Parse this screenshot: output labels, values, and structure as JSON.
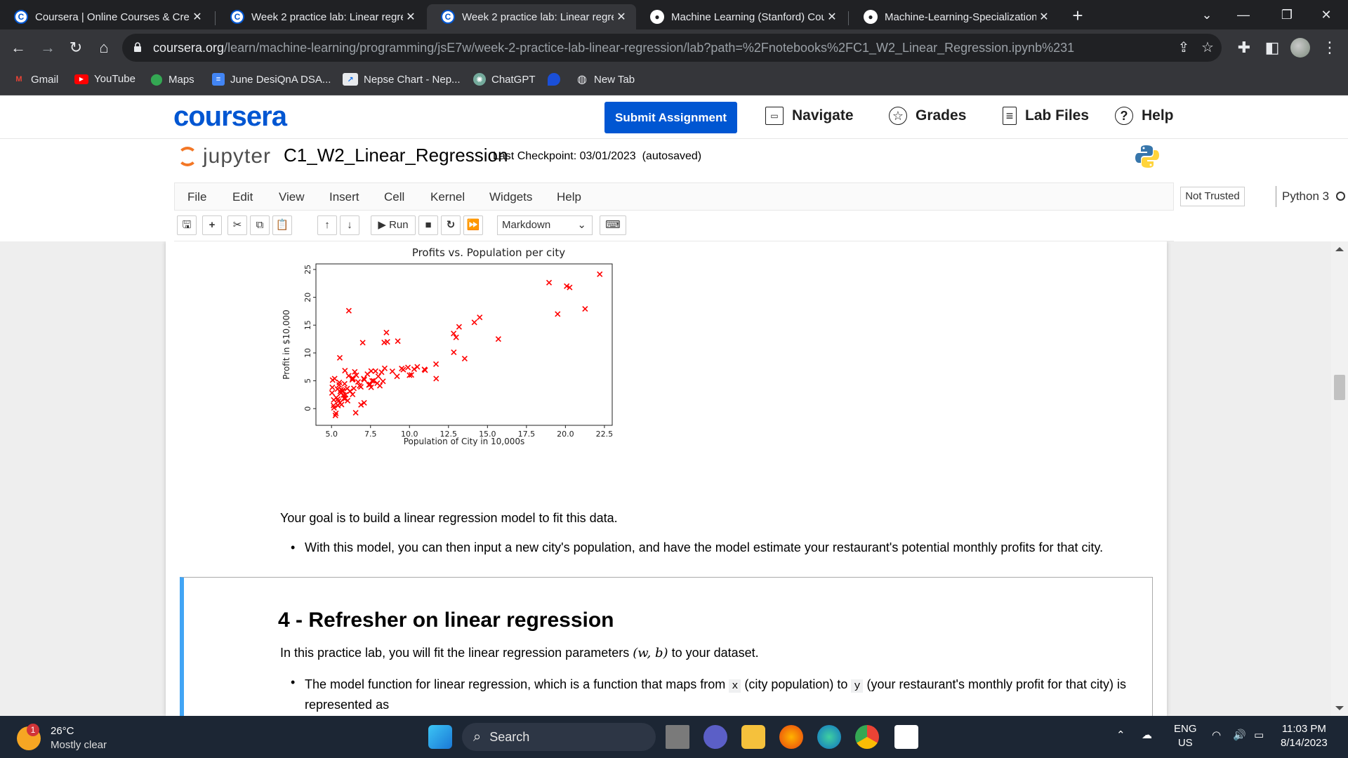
{
  "browser": {
    "tabs": [
      {
        "title": "Coursera | Online Courses & Cred",
        "icon": "coursera-icon",
        "active": false
      },
      {
        "title": "Week 2 practice lab: Linear regre",
        "icon": "coursera-icon",
        "active": false
      },
      {
        "title": "Week 2 practice lab: Linear regre",
        "icon": "coursera-icon",
        "active": true
      },
      {
        "title": "Machine Learning (Stanford) Cou",
        "icon": "github-icon",
        "active": false
      },
      {
        "title": "Machine-Learning-Specialization",
        "icon": "github-icon",
        "active": false
      }
    ],
    "url_domain": "coursera.org",
    "url_path": "/learn/machine-learning/programming/jsE7w/week-2-practice-lab-linear-regression/lab?path=%2Fnotebooks%2FC1_W2_Linear_Regression.ipynb%231",
    "bookmarks": [
      {
        "label": "Gmail",
        "icon": "gmail-icon"
      },
      {
        "label": "YouTube",
        "icon": "youtube-icon"
      },
      {
        "label": "Maps",
        "icon": "maps-icon"
      },
      {
        "label": "June DesiQnA DSA...",
        "icon": "docs-icon"
      },
      {
        "label": "Nepse Chart - Nep...",
        "icon": "chart-icon"
      },
      {
        "label": "ChatGPT",
        "icon": "chatgpt-icon"
      },
      {
        "label": "",
        "icon": "drop-icon"
      },
      {
        "label": "New Tab",
        "icon": "globe-icon"
      }
    ]
  },
  "coursera": {
    "logo": "coursera",
    "submit": "Submit Assignment",
    "nav": [
      {
        "label": "Navigate",
        "icon": "window-icon"
      },
      {
        "label": "Grades",
        "icon": "star-icon"
      },
      {
        "label": "Lab Files",
        "icon": "file-icon"
      },
      {
        "label": "Help",
        "icon": "help-icon"
      }
    ]
  },
  "jupyter": {
    "logo": "jupyter",
    "notebook": "C1_W2_Linear_Regression",
    "checkpoint": "Last Checkpoint: 03/01/2023",
    "autosaved": "(autosaved)",
    "menus": [
      "File",
      "Edit",
      "View",
      "Insert",
      "Cell",
      "Kernel",
      "Widgets",
      "Help"
    ],
    "trusted": "Not Trusted",
    "kernel": "Python 3",
    "run_label": "Run",
    "cell_type": "Markdown"
  },
  "chart_data": {
    "type": "scatter",
    "title": "Profits vs. Population per city",
    "xlabel": "Population of City in 10,000s",
    "ylabel": "Profit in $10,000",
    "xlim": [
      4.0,
      23.0
    ],
    "ylim": [
      -3.0,
      26.0
    ],
    "xticks": [
      "5.0",
      "7.5",
      "10.0",
      "12.5",
      "15.0",
      "17.5",
      "20.0",
      "22.5"
    ],
    "yticks": [
      "0",
      "5",
      "10",
      "15",
      "20",
      "25"
    ],
    "marker": "x",
    "color": "#ff0000",
    "points": [
      [
        6.11,
        17.59
      ],
      [
        5.53,
        9.13
      ],
      [
        8.52,
        13.66
      ],
      [
        7.0,
        11.85
      ],
      [
        5.86,
        6.82
      ],
      [
        8.38,
        11.89
      ],
      [
        7.48,
        4.35
      ],
      [
        8.58,
        12.0
      ],
      [
        6.49,
        6.6
      ],
      [
        5.05,
        3.82
      ],
      [
        5.71,
        3.25
      ],
      [
        14.16,
        15.5
      ],
      [
        5.73,
        3.16
      ],
      [
        8.41,
        7.23
      ],
      [
        5.64,
        0.72
      ],
      [
        5.38,
        3.51
      ],
      [
        6.37,
        5.3
      ],
      [
        5.13,
        0.56
      ],
      [
        6.43,
        3.65
      ],
      [
        7.07,
        5.39
      ],
      [
        6.19,
        3.14
      ],
      [
        20.27,
        21.77
      ],
      [
        5.49,
        4.26
      ],
      [
        6.33,
        5.19
      ],
      [
        5.56,
        3.08
      ],
      [
        18.95,
        22.64
      ],
      [
        12.83,
        13.5
      ],
      [
        10.96,
        7.05
      ],
      [
        13.18,
        14.69
      ],
      [
        22.2,
        24.15
      ],
      [
        5.25,
        -1.22
      ],
      [
        6.59,
        5.99
      ],
      [
        9.25,
        12.13
      ],
      [
        5.89,
        1.85
      ],
      [
        8.21,
        6.54
      ],
      [
        7.93,
        4.56
      ],
      [
        8.1,
        4.12
      ],
      [
        5.61,
        3.39
      ],
      [
        12.84,
        10.12
      ],
      [
        6.35,
        5.5
      ],
      [
        5.41,
        0.56
      ],
      [
        6.88,
        3.91
      ],
      [
        11.71,
        5.39
      ],
      [
        5.77,
        2.44
      ],
      [
        7.82,
        6.73
      ],
      [
        7.09,
        1.05
      ],
      [
        5.07,
        5.13
      ],
      [
        5.8,
        1.84
      ],
      [
        11.7,
        8.0
      ],
      [
        5.54,
        1.02
      ],
      [
        7.54,
        6.75
      ],
      [
        5.3,
        1.98
      ],
      [
        7.42,
        4.29
      ],
      [
        7.6,
        4.99
      ],
      [
        6.03,
        1.42
      ],
      [
        6.55,
        -0.74
      ],
      [
        7.54,
        3.83
      ],
      [
        5.03,
        2.82
      ],
      [
        5.14,
        1.56
      ],
      [
        7.4,
        4.26
      ],
      [
        6.35,
        2.55
      ],
      [
        5.84,
        4.47
      ],
      [
        5.16,
        0.15
      ],
      [
        5.28,
        -0.85
      ],
      [
        10.12,
        6.06
      ],
      [
        5.45,
        1.36
      ],
      [
        6.89,
        0.68
      ],
      [
        12.99,
        12.8
      ],
      [
        13.54,
        8.99
      ],
      [
        20.08,
        22.0
      ],
      [
        15.7,
        12.5
      ],
      [
        19.5,
        17.0
      ],
      [
        21.26,
        17.93
      ],
      [
        9.5,
        7.2
      ],
      [
        10.0,
        6.0
      ],
      [
        9.2,
        5.8
      ],
      [
        8.9,
        6.7
      ],
      [
        9.6,
        7.0
      ],
      [
        10.5,
        7.5
      ],
      [
        8.3,
        4.9
      ],
      [
        7.1,
        5.2
      ],
      [
        6.7,
        4.8
      ],
      [
        5.9,
        2.5
      ],
      [
        6.0,
        3.6
      ],
      [
        5.5,
        4.7
      ],
      [
        8.0,
        5.8
      ],
      [
        7.3,
        6.2
      ],
      [
        6.8,
        4.1
      ],
      [
        5.2,
        5.4
      ],
      [
        5.6,
        2.8
      ],
      [
        9.9,
        7.4
      ],
      [
        10.3,
        7.1
      ],
      [
        11.0,
        6.9
      ],
      [
        14.5,
        16.4
      ],
      [
        5.4,
        1.7
      ],
      [
        6.1,
        5.9
      ],
      [
        7.7,
        5.0
      ]
    ]
  },
  "content": {
    "goal_text": "Your goal is to build a linear regression model to fit this data.",
    "bullet1": "With this model, you can then input a new city's population, and have the model estimate your restaurant's potential monthly profits for that city.",
    "section_title": "4 - Refresher on linear regression",
    "fit_text_pre": "In this practice lab, you will fit the linear regression parameters",
    "fit_math": "(w, b)",
    "fit_text_post": "to your dataset.",
    "bullet2_a": "The model function for linear regression, which is a function that maps from",
    "bullet2_code1": "x",
    "bullet2_b": "(city population) to",
    "bullet2_code2": "y",
    "bullet2_c": "(your restaurant's monthly profit for that city) is",
    "bullet2_d": "represented as"
  },
  "taskbar": {
    "temp": "26°C",
    "weather": "Mostly clear",
    "weather_badge": "1",
    "search": "Search",
    "lang_top": "ENG",
    "lang_bottom": "US",
    "time": "11:03 PM",
    "date": "8/14/2023"
  }
}
